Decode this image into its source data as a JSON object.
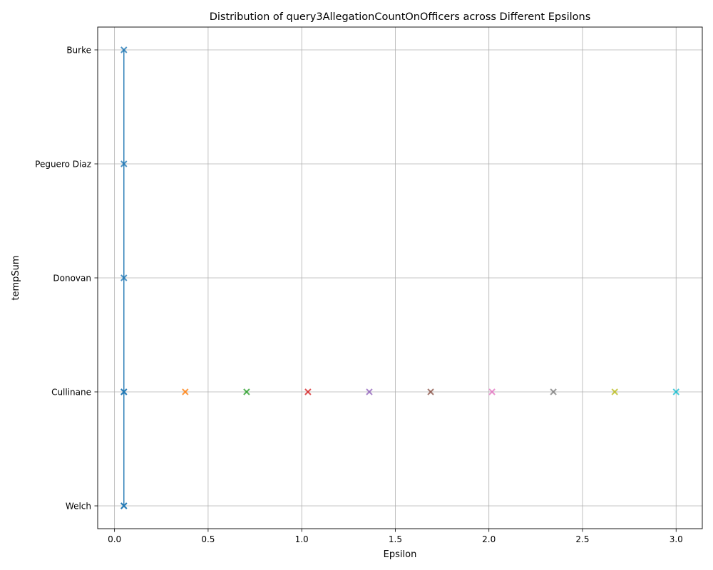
{
  "chart_data": {
    "type": "scatter",
    "title": "Distribution of query3AllegationCountOnOfficers across Different Epsilons",
    "xlabel": "Epsilon",
    "ylabel": "tempSum",
    "xlim": [
      -0.09,
      3.14
    ],
    "ylim": [
      -0.2,
      4.2
    ],
    "x_ticks": [
      {
        "value": 0.0,
        "label": "0.0"
      },
      {
        "value": 0.5,
        "label": "0.5"
      },
      {
        "value": 1.0,
        "label": "1.0"
      },
      {
        "value": 1.5,
        "label": "1.5"
      },
      {
        "value": 2.0,
        "label": "2.0"
      },
      {
        "value": 2.5,
        "label": "2.5"
      },
      {
        "value": 3.0,
        "label": "3.0"
      }
    ],
    "y_categories": [
      "Welch",
      "Cullinane",
      "Donovan",
      "Peguero Diaz",
      "Burke"
    ],
    "grid": true,
    "marker": "x",
    "series": [
      {
        "x": 0.05,
        "points": [
          "Welch",
          "Cullinane",
          "Donovan",
          "Peguero Diaz",
          "Burke"
        ],
        "color": "#1f77b4",
        "connected": true
      },
      {
        "x": 0.05,
        "points": [
          "Welch",
          "Cullinane"
        ],
        "color": "#1f77b4",
        "connected": false
      },
      {
        "x": 0.3778,
        "points": [
          "Cullinane"
        ],
        "color": "#ff7f0e",
        "connected": false
      },
      {
        "x": 0.7056,
        "points": [
          "Cullinane"
        ],
        "color": "#2ca02c",
        "connected": false
      },
      {
        "x": 1.0333,
        "points": [
          "Cullinane"
        ],
        "color": "#d62728",
        "connected": false
      },
      {
        "x": 1.3611,
        "points": [
          "Cullinane"
        ],
        "color": "#9467bd",
        "connected": false
      },
      {
        "x": 1.6889,
        "points": [
          "Cullinane"
        ],
        "color": "#8c564b",
        "connected": false
      },
      {
        "x": 2.0167,
        "points": [
          "Cullinane"
        ],
        "color": "#e377c2",
        "connected": false
      },
      {
        "x": 2.3444,
        "points": [
          "Cullinane"
        ],
        "color": "#7f7f7f",
        "connected": false
      },
      {
        "x": 2.6722,
        "points": [
          "Cullinane"
        ],
        "color": "#bcbd22",
        "connected": false
      },
      {
        "x": 3.0,
        "points": [
          "Cullinane"
        ],
        "color": "#17becf",
        "connected": false
      }
    ]
  }
}
